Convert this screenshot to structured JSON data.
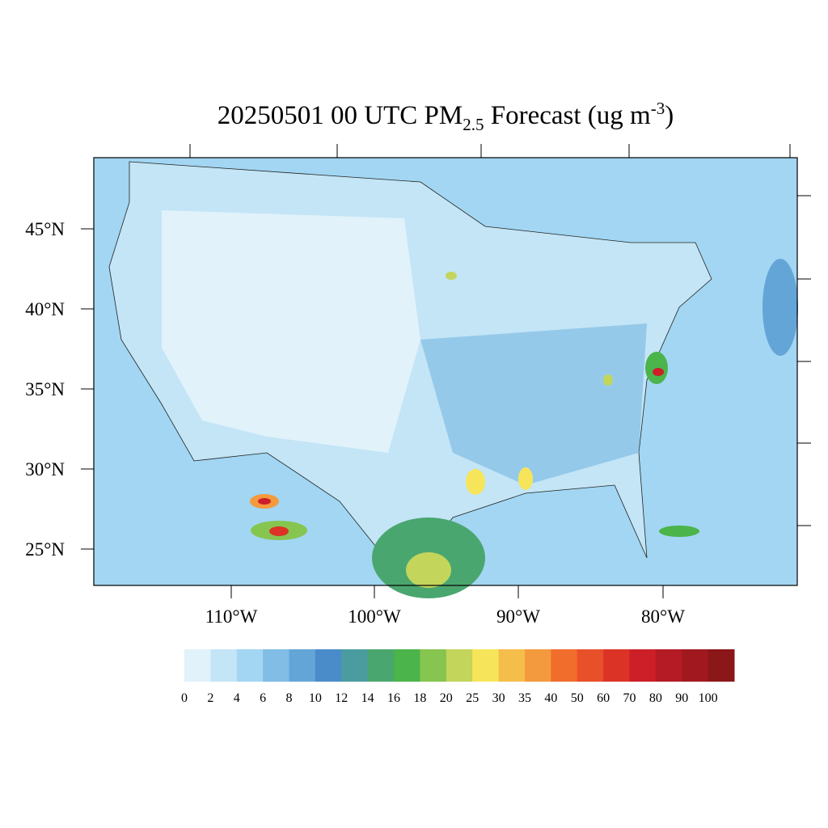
{
  "title": {
    "main": "20250501 00 UTC PM",
    "subscript": "2.5",
    "middle": " Forecast (ug m",
    "superscript": "-3",
    "end": ")"
  },
  "map": {
    "lat_labels": [
      "45°N",
      "40°N",
      "35°N",
      "30°N",
      "25°N"
    ],
    "lon_labels": [
      "110°W",
      "100°W",
      "90°W",
      "80°W"
    ]
  },
  "colorbar": {
    "labels": [
      0,
      2,
      4,
      6,
      8,
      10,
      12,
      14,
      16,
      18,
      20,
      25,
      30,
      35,
      40,
      50,
      60,
      70,
      80,
      90,
      100
    ],
    "colors": [
      "#e1f2fb",
      "#c3e5f6",
      "#a2d6f2",
      "#82bde6",
      "#64a5d7",
      "#4a8cca",
      "#4a9c9f",
      "#4aa66f",
      "#4bb44a",
      "#86c54f",
      "#c3d55a",
      "#f6e55a",
      "#f5be4a",
      "#f49a3e",
      "#f06d2c",
      "#e8502a",
      "#dc3327",
      "#cc1f28",
      "#b41b24",
      "#a1191f",
      "#8b1719"
    ]
  }
}
